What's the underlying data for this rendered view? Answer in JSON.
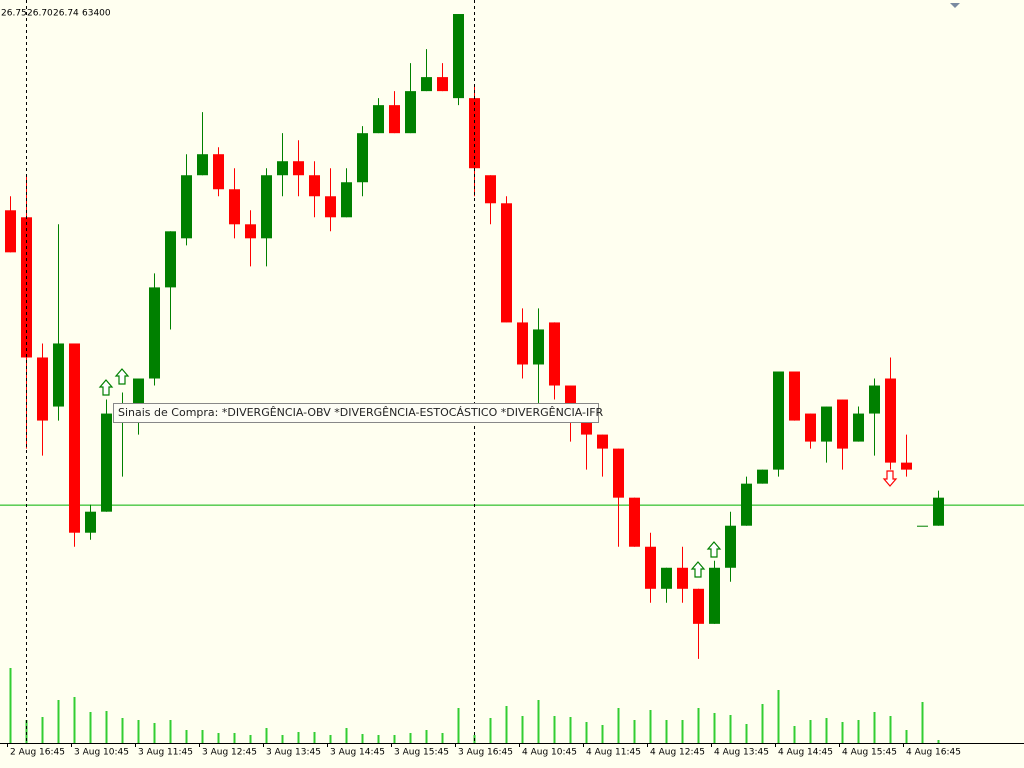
{
  "header": [
    "26.75",
    "26.70",
    "26.74",
    "63400"
  ],
  "tooltip": "Sinais de Compra: *DIVERGÊNCIA-OBV  *DIVERGÊNCIA-ESTOCÁSTICO  *DIVERGÊNCIA-IFR",
  "chart_data": {
    "type": "candlestick",
    "categories": [
      "2 Aug 16:45",
      null,
      null,
      null,
      "3 Aug 10:45",
      null,
      null,
      null,
      "3 Aug 11:45",
      null,
      null,
      null,
      "3 Aug 12:45",
      null,
      null,
      null,
      "3 Aug 13:45",
      null,
      null,
      null,
      "3 Aug 14:45",
      null,
      null,
      null,
      "3 Aug 15:45",
      null,
      null,
      null,
      "3 Aug 16:45",
      null,
      null,
      null,
      "4 Aug 10:45",
      null,
      null,
      null,
      "4 Aug 11:45",
      null,
      null,
      null,
      "4 Aug 12:45",
      null,
      null,
      null,
      "4 Aug 13:45",
      null,
      null,
      null,
      "4 Aug 14:45",
      null,
      null,
      null,
      "4 Aug 15:45",
      null,
      null,
      null,
      "4 Aug 16:45",
      null,
      null
    ],
    "open": [
      27.15,
      27.14,
      26.94,
      26.87,
      26.96,
      26.69,
      26.72,
      26.86,
      26.87,
      26.91,
      27.04,
      27.11,
      27.2,
      27.23,
      27.18,
      27.13,
      27.11,
      27.2,
      27.22,
      27.2,
      27.17,
      27.14,
      27.19,
      27.26,
      27.3,
      27.26,
      27.32,
      27.34,
      27.31,
      27.31,
      27.2,
      27.16,
      26.99,
      26.93,
      26.99,
      26.9,
      26.85,
      26.83,
      26.81,
      26.74,
      26.67,
      26.61,
      26.64,
      26.61,
      26.56,
      26.64,
      26.7,
      26.76,
      26.78,
      26.92,
      26.86,
      26.82,
      26.88,
      26.82,
      26.86,
      26.91,
      26.79,
      26.7,
      26.7
    ],
    "high": [
      27.17,
      27.2,
      26.96,
      27.13,
      26.96,
      26.73,
      26.88,
      26.89,
      26.91,
      27.06,
      27.12,
      27.23,
      27.29,
      27.24,
      27.21,
      27.15,
      27.21,
      27.26,
      27.25,
      27.22,
      27.21,
      27.21,
      27.27,
      27.31,
      27.32,
      27.36,
      27.38,
      27.36,
      27.43,
      27.33,
      27.2,
      27.17,
      27.01,
      27.01,
      26.99,
      26.9,
      26.87,
      26.83,
      26.81,
      26.74,
      26.69,
      26.64,
      26.67,
      26.61,
      26.65,
      26.72,
      26.77,
      26.78,
      26.92,
      26.92,
      26.86,
      26.87,
      26.88,
      26.87,
      26.91,
      26.94,
      26.83,
      26.7,
      26.75
    ],
    "low": [
      27.09,
      26.81,
      26.8,
      26.85,
      26.67,
      26.68,
      26.72,
      26.77,
      26.83,
      26.9,
      26.98,
      27.1,
      27.2,
      27.17,
      27.11,
      27.07,
      27.07,
      27.17,
      27.17,
      27.14,
      27.12,
      27.14,
      27.17,
      27.26,
      27.26,
      27.26,
      27.32,
      27.32,
      27.3,
      27.17,
      27.13,
      26.99,
      26.91,
      26.85,
      26.88,
      26.82,
      26.78,
      26.77,
      26.67,
      26.67,
      26.59,
      26.59,
      26.59,
      26.51,
      26.56,
      26.62,
      26.7,
      26.76,
      26.77,
      26.85,
      26.81,
      26.79,
      26.78,
      26.82,
      26.8,
      26.78,
      26.77,
      26.7,
      26.7
    ],
    "close": [
      27.09,
      26.94,
      26.85,
      26.96,
      26.69,
      26.72,
      26.86,
      26.87,
      26.91,
      27.04,
      27.12,
      27.2,
      27.23,
      27.18,
      27.13,
      27.11,
      27.2,
      27.22,
      27.2,
      27.17,
      27.14,
      27.19,
      27.26,
      27.3,
      27.26,
      27.32,
      27.34,
      27.32,
      27.43,
      27.21,
      27.16,
      26.99,
      26.93,
      26.98,
      26.9,
      26.85,
      26.83,
      26.81,
      26.74,
      26.67,
      26.61,
      26.64,
      26.61,
      26.56,
      26.64,
      26.7,
      26.76,
      26.78,
      26.92,
      26.85,
      26.82,
      26.87,
      26.81,
      26.86,
      26.9,
      26.79,
      26.78,
      26.7,
      26.74
    ],
    "volume": [
      75000,
      23000,
      26000,
      43000,
      46000,
      31000,
      32000,
      25000,
      23000,
      20000,
      23000,
      13000,
      13000,
      10000,
      10000,
      8000,
      15000,
      8000,
      11000,
      11000,
      8000,
      15000,
      9000,
      8000,
      8000,
      10000,
      13000,
      10000,
      35000,
      8000,
      25000,
      37000,
      27000,
      43000,
      27000,
      26000,
      21000,
      18000,
      35000,
      23000,
      33000,
      23000,
      23000,
      35000,
      30000,
      28000,
      19000,
      39000,
      53000,
      17000,
      23000,
      25000,
      21000,
      23000,
      31000,
      27000,
      13000,
      41000,
      3000
    ],
    "ylim": [
      26.39,
      27.45
    ],
    "volume_lim": [
      0,
      743000
    ],
    "price_line": 26.73,
    "up_color": "#008000",
    "down_color": "#ff0000",
    "volume_color": "#32cd32",
    "price_line_color": "#00b000"
  }
}
